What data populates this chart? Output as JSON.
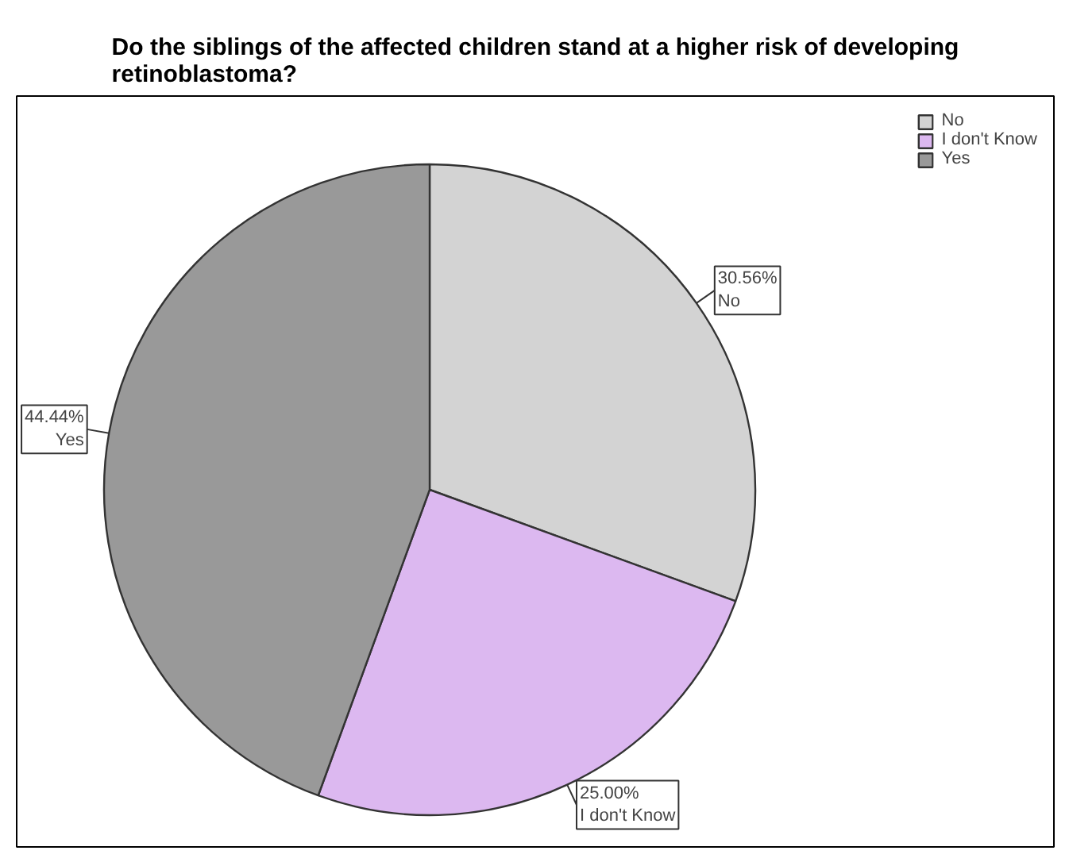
{
  "chart_data": {
    "type": "pie",
    "title": "Do the siblings of the affected children stand at a higher risk of developing retinoblastoma?",
    "categories": [
      "No",
      "I don't Know",
      "Yes"
    ],
    "values": [
      30.56,
      25.0,
      44.44
    ],
    "colors": [
      "#d3d3d3",
      "#dcb8f0",
      "#999999"
    ],
    "value_labels": [
      "30.56%",
      "25.00%",
      "44.44%"
    ],
    "legend": "top right"
  }
}
